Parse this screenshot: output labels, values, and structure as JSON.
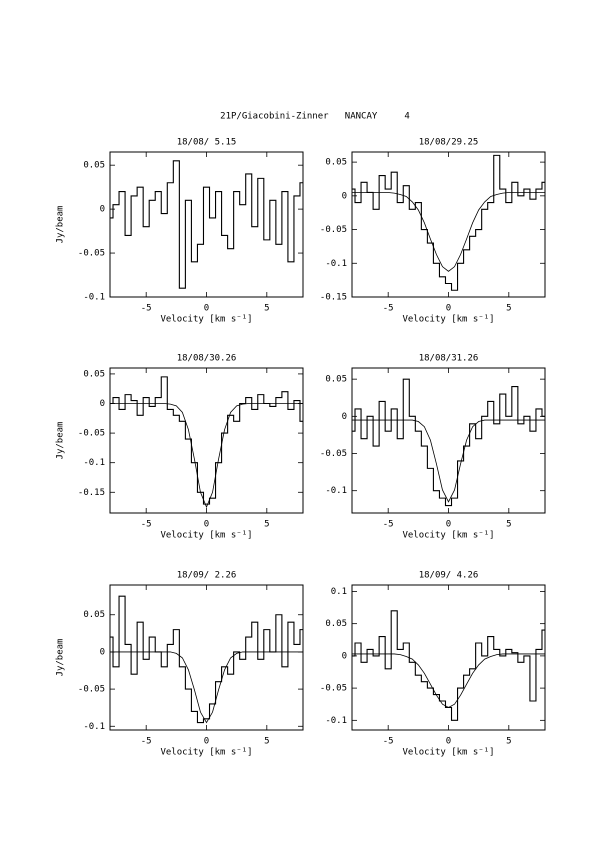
{
  "title": "21P/Giacobini-Zinner   NANCAY     4",
  "chart_data": [
    {
      "type": "line",
      "title": "18/08/ 5.15",
      "xlabel": "Velocity [km s⁻¹]",
      "ylabel": "Jy/beam",
      "x": [
        -8,
        -7.5,
        -7,
        -6.5,
        -6,
        -5.5,
        -5,
        -4.5,
        -4,
        -3.5,
        -3,
        -2.5,
        -2,
        -1.5,
        -1,
        -0.5,
        0,
        0.5,
        1,
        1.5,
        2,
        2.5,
        3,
        3.5,
        4,
        4.5,
        5,
        5.5,
        6,
        6.5,
        7,
        7.5,
        8
      ],
      "xlim": [
        -8,
        8
      ],
      "xticks": [
        -5,
        0,
        5
      ],
      "ylim": [
        -0.1,
        0.065
      ],
      "yticks": [
        -0.1,
        -0.05,
        0,
        0.05
      ],
      "series": [
        {
          "color": "#000000",
          "style": "steps",
          "values": [
            -0.01,
            0.005,
            0.02,
            -0.03,
            0.015,
            0.025,
            -0.02,
            0.01,
            0.02,
            -0.005,
            0.03,
            0.055,
            -0.09,
            0.01,
            -0.06,
            -0.04,
            0.025,
            -0.01,
            0.02,
            -0.03,
            -0.045,
            0.02,
            0.005,
            0.04,
            -0.02,
            0.035,
            -0.035,
            0.01,
            -0.04,
            0.02,
            -0.06,
            0.015,
            0.03
          ]
        }
      ]
    },
    {
      "type": "line",
      "title": "18/08/29.25",
      "xlabel": "Velocity [km s⁻¹]",
      "x": [
        -8,
        -7.5,
        -7,
        -6.5,
        -6,
        -5.5,
        -5,
        -4.5,
        -4,
        -3.5,
        -3,
        -2.5,
        -2,
        -1.5,
        -1,
        -0.5,
        0,
        0.5,
        1,
        1.5,
        2,
        2.5,
        3,
        3.5,
        4,
        4.5,
        5,
        5.5,
        6,
        6.5,
        7,
        7.5,
        8
      ],
      "xlim": [
        -8,
        8
      ],
      "xticks": [
        -5,
        0,
        5
      ],
      "ylim": [
        -0.15,
        0.065
      ],
      "yticks": [
        -0.15,
        -0.1,
        -0.05,
        0,
        0.05
      ],
      "series": [
        {
          "color": "#000000",
          "style": "steps",
          "values": [
            0.01,
            -0.01,
            0.02,
            0.005,
            -0.02,
            0.03,
            0.01,
            0.035,
            -0.01,
            0.015,
            -0.02,
            -0.01,
            -0.05,
            -0.07,
            -0.1,
            -0.12,
            -0.13,
            -0.14,
            -0.1,
            -0.08,
            -0.06,
            -0.05,
            -0.02,
            -0.01,
            0.06,
            0.01,
            -0.01,
            0.02,
            0,
            0.01,
            -0.005,
            0.01,
            0.02
          ]
        },
        {
          "color": "#000000",
          "style": "smooth",
          "values": [
            0.005,
            0.005,
            0.005,
            0.005,
            0.005,
            0.005,
            0.005,
            0.004,
            0.002,
            -0.001,
            -0.009,
            -0.021,
            -0.04,
            -0.064,
            -0.087,
            -0.105,
            -0.112,
            -0.105,
            -0.087,
            -0.064,
            -0.04,
            -0.021,
            -0.009,
            -0.001,
            0.002,
            0.004,
            0.005,
            0.005,
            0.005,
            0.005,
            0.005,
            0.005,
            0.005
          ]
        }
      ]
    },
    {
      "type": "line",
      "title": "18/08/30.26",
      "xlabel": "Velocity [km s⁻¹]",
      "ylabel": "Jy/beam",
      "x": [
        -8,
        -7.5,
        -7,
        -6.5,
        -6,
        -5.5,
        -5,
        -4.5,
        -4,
        -3.5,
        -3,
        -2.5,
        -2,
        -1.5,
        -1,
        -0.5,
        0,
        0.5,
        1,
        1.5,
        2,
        2.5,
        3,
        3.5,
        4,
        4.5,
        5,
        5.5,
        6,
        6.5,
        7,
        7.5,
        8
      ],
      "xlim": [
        -8,
        8
      ],
      "xticks": [
        -5,
        0,
        5
      ],
      "ylim": [
        -0.185,
        0.06
      ],
      "yticks": [
        -0.15,
        -0.1,
        -0.05,
        0,
        0.05
      ],
      "series": [
        {
          "color": "#000000",
          "style": "steps",
          "values": [
            0,
            0.01,
            -0.01,
            0.015,
            0.005,
            -0.02,
            0.01,
            -0.005,
            0.01,
            0.045,
            -0.01,
            -0.02,
            -0.03,
            -0.06,
            -0.1,
            -0.15,
            -0.17,
            -0.16,
            -0.1,
            -0.05,
            -0.02,
            -0.03,
            0,
            0.01,
            -0.01,
            0.015,
            0,
            -0.005,
            0.01,
            0.02,
            -0.01,
            0.005,
            -0.03
          ]
        },
        {
          "color": "#000000",
          "style": "smooth",
          "values": [
            0,
            0,
            0,
            0,
            0,
            0,
            0,
            0,
            0,
            0,
            -0.001,
            -0.004,
            -0.015,
            -0.044,
            -0.094,
            -0.15,
            -0.175,
            -0.15,
            -0.094,
            -0.044,
            -0.015,
            -0.004,
            -0.001,
            0,
            0,
            0,
            0,
            0,
            0,
            0,
            0,
            0,
            0
          ]
        }
      ]
    },
    {
      "type": "line",
      "title": "18/08/31.26",
      "xlabel": "Velocity [km s⁻¹]",
      "x": [
        -8,
        -7.5,
        -7,
        -6.5,
        -6,
        -5.5,
        -5,
        -4.5,
        -4,
        -3.5,
        -3,
        -2.5,
        -2,
        -1.5,
        -1,
        -0.5,
        0,
        0.5,
        1,
        1.5,
        2,
        2.5,
        3,
        3.5,
        4,
        4.5,
        5,
        5.5,
        6,
        6.5,
        7,
        7.5,
        8
      ],
      "xlim": [
        -8,
        8
      ],
      "xticks": [
        -5,
        0,
        5
      ],
      "ylim": [
        -0.13,
        0.065
      ],
      "yticks": [
        -0.1,
        -0.05,
        0,
        0.05
      ],
      "series": [
        {
          "color": "#000000",
          "style": "steps",
          "values": [
            -0.02,
            0.01,
            -0.03,
            0,
            -0.04,
            0.02,
            -0.02,
            0.01,
            -0.03,
            0.05,
            0,
            -0.02,
            -0.04,
            -0.07,
            -0.1,
            -0.11,
            -0.12,
            -0.11,
            -0.06,
            -0.04,
            -0.01,
            -0.03,
            0,
            0.02,
            -0.01,
            0.03,
            0,
            0.04,
            -0.01,
            0,
            -0.02,
            0.01,
            0
          ]
        },
        {
          "color": "#000000",
          "style": "smooth",
          "values": [
            -0.005,
            -0.005,
            -0.005,
            -0.005,
            -0.005,
            -0.005,
            -0.005,
            -0.005,
            -0.005,
            -0.005,
            -0.005,
            -0.007,
            -0.014,
            -0.032,
            -0.064,
            -0.099,
            -0.115,
            -0.099,
            -0.064,
            -0.032,
            -0.014,
            -0.007,
            -0.005,
            -0.005,
            -0.005,
            -0.005,
            -0.005,
            -0.005,
            -0.005,
            -0.005,
            -0.005,
            -0.005,
            -0.005
          ]
        }
      ]
    },
    {
      "type": "line",
      "title": "18/09/ 2.26",
      "xlabel": "Velocity [km s⁻¹]",
      "ylabel": "Jy/beam",
      "x": [
        -8,
        -7.5,
        -7,
        -6.5,
        -6,
        -5.5,
        -5,
        -4.5,
        -4,
        -3.5,
        -3,
        -2.5,
        -2,
        -1.5,
        -1,
        -0.5,
        0,
        0.5,
        1,
        1.5,
        2,
        2.5,
        3,
        3.5,
        4,
        4.5,
        5,
        5.5,
        6,
        6.5,
        7,
        7.5,
        8
      ],
      "xlim": [
        -8,
        8
      ],
      "xticks": [
        -5,
        0,
        5
      ],
      "ylim": [
        -0.105,
        0.09
      ],
      "yticks": [
        -0.1,
        -0.05,
        0,
        0.05
      ],
      "series": [
        {
          "color": "#000000",
          "style": "steps",
          "values": [
            0.02,
            -0.02,
            0.075,
            0.01,
            -0.03,
            0.04,
            -0.01,
            0.02,
            0,
            -0.02,
            0.01,
            0.03,
            -0.02,
            -0.05,
            -0.08,
            -0.095,
            -0.09,
            -0.07,
            -0.04,
            -0.02,
            -0.03,
            0,
            -0.01,
            0.02,
            0.04,
            -0.01,
            0.03,
            0,
            0.05,
            -0.02,
            0.04,
            0.01,
            0.03
          ]
        },
        {
          "color": "#000000",
          "style": "smooth",
          "values": [
            0,
            0,
            0,
            0,
            0,
            0,
            0,
            0,
            0,
            0,
            0,
            -0.002,
            -0.008,
            -0.024,
            -0.051,
            -0.081,
            -0.095,
            -0.081,
            -0.051,
            -0.024,
            -0.008,
            -0.002,
            0,
            0,
            0,
            0,
            0,
            0,
            0,
            0,
            0,
            0,
            0
          ]
        }
      ]
    },
    {
      "type": "line",
      "title": "18/09/ 4.26",
      "xlabel": "Velocity [km s⁻¹]",
      "x": [
        -8,
        -7.5,
        -7,
        -6.5,
        -6,
        -5.5,
        -5,
        -4.5,
        -4,
        -3.5,
        -3,
        -2.5,
        -2,
        -1.5,
        -1,
        -0.5,
        0,
        0.5,
        1,
        1.5,
        2,
        2.5,
        3,
        3.5,
        4,
        4.5,
        5,
        5.5,
        6,
        6.5,
        7,
        7.5,
        8
      ],
      "xlim": [
        -8,
        8
      ],
      "xticks": [
        -5,
        0,
        5
      ],
      "ylim": [
        -0.115,
        0.11
      ],
      "yticks": [
        -0.1,
        -0.05,
        0,
        0.05,
        0.1
      ],
      "series": [
        {
          "color": "#000000",
          "style": "steps",
          "values": [
            0,
            0.02,
            -0.01,
            0.01,
            0,
            0.03,
            -0.02,
            0.07,
            0.01,
            0.02,
            -0.01,
            -0.03,
            -0.04,
            -0.05,
            -0.06,
            -0.07,
            -0.08,
            -0.1,
            -0.05,
            -0.03,
            -0.02,
            0.02,
            0,
            0.03,
            0.01,
            0,
            0.01,
            0.005,
            -0.01,
            0,
            -0.07,
            0.01,
            0.04
          ]
        },
        {
          "color": "#000000",
          "style": "smooth",
          "values": [
            0.003,
            0.003,
            0.003,
            0.003,
            0.003,
            0.003,
            0.003,
            0.003,
            0.002,
            -0.001,
            -0.005,
            -0.014,
            -0.027,
            -0.044,
            -0.061,
            -0.075,
            -0.08,
            -0.075,
            -0.061,
            -0.044,
            -0.027,
            -0.014,
            -0.005,
            -0.001,
            0.002,
            0.003,
            0.003,
            0.003,
            0.003,
            0.003,
            0.003,
            0.003,
            0.003
          ]
        }
      ]
    }
  ]
}
